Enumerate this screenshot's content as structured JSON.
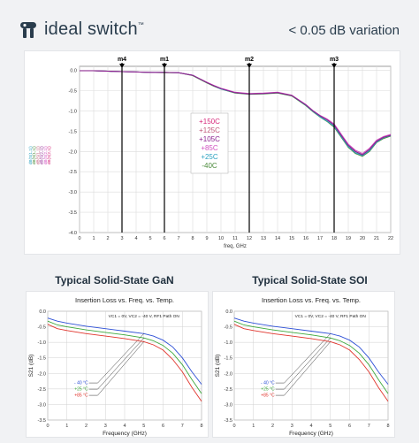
{
  "brand": {
    "name": "ideal switch",
    "mark": "™"
  },
  "tagline": "< 0.05 dB variation",
  "colors": {
    "brand": "#2a3d4d",
    "grid": "#d4d4d4",
    "marker": "#000000"
  },
  "top_chart": {
    "type": "line",
    "xlabel": "freq, GHz",
    "xlim": [
      0,
      22
    ],
    "ylim": [
      -4.0,
      0.1
    ],
    "xticks": [
      0,
      1,
      2,
      3,
      4,
      5,
      6,
      7,
      8,
      9,
      10,
      11,
      12,
      13,
      14,
      15,
      16,
      17,
      18,
      19,
      20,
      21,
      22
    ],
    "yticks": [
      0.0,
      -0.5,
      -1.0,
      -1.5,
      -2.0,
      -2.5,
      -3.0,
      -3.5,
      -4.0
    ],
    "ytick_labels": [
      "0.0",
      "-0.5",
      "-1.0",
      "-1.5",
      "-2.0",
      "-2.5",
      "-3.0",
      "-3.5",
      "-4.0"
    ],
    "markers": [
      {
        "name": "m4",
        "x": 3
      },
      {
        "name": "m1",
        "x": 6
      },
      {
        "name": "m2",
        "x": 12
      },
      {
        "name": "m3",
        "x": 18
      }
    ],
    "legend": [
      {
        "label": "+150C",
        "color": "#d6287a"
      },
      {
        "label": "+125C",
        "color": "#c0587a"
      },
      {
        "label": "+105C",
        "color": "#8b1f8f"
      },
      {
        "label": "+85C",
        "color": "#d04fc0"
      },
      {
        "label": "+25C",
        "color": "#2aa0c0"
      },
      {
        "label": "-40C",
        "color": "#4a8a3a"
      }
    ],
    "x": [
      0,
      1,
      2,
      3,
      4,
      5,
      6,
      7,
      8,
      9,
      9.5,
      10,
      11,
      12,
      13,
      14,
      15,
      16,
      16.5,
      17,
      17.5,
      18,
      18.5,
      19,
      19.5,
      20,
      20.5,
      21,
      21.5,
      22
    ],
    "series": [
      {
        "color": "#555555",
        "values": [
          -0.01,
          -0.01,
          -0.02,
          -0.03,
          -0.04,
          -0.05,
          -0.05,
          -0.06,
          -0.12,
          -0.3,
          -0.38,
          -0.45,
          -0.55,
          -0.58,
          -0.57,
          -0.55,
          -0.62,
          -0.85,
          -1.0,
          -1.12,
          -1.22,
          -1.35,
          -1.6,
          -1.85,
          -2.0,
          -2.08,
          -1.95,
          -1.75,
          -1.65,
          -1.6
        ]
      },
      {
        "color": "#4a8a3a",
        "values": [
          -0.01,
          -0.01,
          -0.02,
          -0.03,
          -0.04,
          -0.05,
          -0.06,
          -0.06,
          -0.13,
          -0.31,
          -0.39,
          -0.46,
          -0.56,
          -0.59,
          -0.58,
          -0.56,
          -0.63,
          -0.87,
          -1.02,
          -1.15,
          -1.26,
          -1.4,
          -1.65,
          -1.9,
          -2.05,
          -2.12,
          -2.0,
          -1.78,
          -1.68,
          -1.62
        ]
      },
      {
        "color": "#2aa0c0",
        "values": [
          -0.01,
          -0.01,
          -0.02,
          -0.03,
          -0.04,
          -0.05,
          -0.05,
          -0.06,
          -0.12,
          -0.3,
          -0.38,
          -0.46,
          -0.55,
          -0.58,
          -0.57,
          -0.55,
          -0.62,
          -0.86,
          -1.01,
          -1.14,
          -1.25,
          -1.38,
          -1.63,
          -1.88,
          -2.03,
          -2.1,
          -1.98,
          -1.77,
          -1.66,
          -1.61
        ]
      },
      {
        "color": "#d04fc0",
        "values": [
          -0.01,
          -0.01,
          -0.02,
          -0.03,
          -0.04,
          -0.05,
          -0.05,
          -0.06,
          -0.12,
          -0.29,
          -0.37,
          -0.44,
          -0.54,
          -0.57,
          -0.56,
          -0.54,
          -0.61,
          -0.84,
          -0.99,
          -1.11,
          -1.2,
          -1.32,
          -1.57,
          -1.82,
          -1.97,
          -2.05,
          -1.92,
          -1.72,
          -1.63,
          -1.58
        ]
      },
      {
        "color": "#8b1f8f",
        "values": [
          -0.01,
          -0.01,
          -0.02,
          -0.03,
          -0.04,
          -0.05,
          -0.05,
          -0.06,
          -0.12,
          -0.3,
          -0.38,
          -0.45,
          -0.55,
          -0.58,
          -0.57,
          -0.55,
          -0.62,
          -0.85,
          -1.0,
          -1.12,
          -1.22,
          -1.35,
          -1.6,
          -1.85,
          -2.0,
          -2.08,
          -1.95,
          -1.75,
          -1.65,
          -1.6
        ]
      }
    ],
    "left_labels": [
      "dB(S(1,1))",
      "dB(S(1,1))",
      "dB(S(1,1))",
      "dB(S(2,1))",
      "dB(S(2,1))",
      "dB(S(2,1))"
    ]
  },
  "panels": [
    {
      "title": "Typical Solid-State GaN",
      "chart_title": "Insertion Loss vs. Freq. vs. Temp.",
      "subtitle": "VC1 = 0V, VC2 = -40 V, RF1 Path ON",
      "xlabel": "Frequency (GHz)",
      "ylabel": "S21 (dB)",
      "xlim": [
        0,
        8
      ],
      "ylim": [
        -3.5,
        0.0
      ],
      "xticks": [
        0,
        1,
        2,
        3,
        4,
        5,
        6,
        7,
        8
      ],
      "yticks": [
        0.0,
        -0.5,
        -1.0,
        -1.5,
        -2.0,
        -2.5,
        -3.0,
        -3.5
      ],
      "ytick_labels": [
        "0.0",
        "-0.5",
        "-1.0",
        "-1.5",
        "-2.0",
        "-2.5",
        "-3.0",
        "-3.5"
      ],
      "x": [
        0,
        0.5,
        1,
        2,
        3,
        4,
        5,
        5.5,
        6,
        6.5,
        7,
        7.5,
        8
      ],
      "series": [
        {
          "name": "- 40 °C",
          "color": "#2c4fd6",
          "values": [
            -0.22,
            -0.32,
            -0.38,
            -0.48,
            -0.56,
            -0.64,
            -0.72,
            -0.8,
            -0.93,
            -1.15,
            -1.5,
            -1.95,
            -2.35
          ]
        },
        {
          "name": "+25 °C",
          "color": "#3ca83c",
          "values": [
            -0.32,
            -0.44,
            -0.5,
            -0.6,
            -0.68,
            -0.76,
            -0.86,
            -0.95,
            -1.1,
            -1.35,
            -1.72,
            -2.2,
            -2.65
          ]
        },
        {
          "name": "+85 °C",
          "color": "#e0342c",
          "values": [
            -0.42,
            -0.56,
            -0.62,
            -0.72,
            -0.8,
            -0.88,
            -0.98,
            -1.08,
            -1.25,
            -1.55,
            -1.95,
            -2.45,
            -2.9
          ]
        }
      ]
    },
    {
      "title": "Typical Solid-State SOI",
      "chart_title": "Insertion Loss vs. Freq. vs. Temp.",
      "subtitle": "VC1 = 0V, VC2 = -40 V, RF1 Path ON",
      "xlabel": "Frequency (GHz)",
      "ylabel": "S21 (dB)",
      "xlim": [
        0,
        8
      ],
      "ylim": [
        -3.5,
        0.0
      ],
      "xticks": [
        0,
        1,
        2,
        3,
        4,
        5,
        6,
        7,
        8
      ],
      "yticks": [
        0.0,
        -0.5,
        -1.0,
        -1.5,
        -2.0,
        -2.5,
        -3.0,
        -3.5
      ],
      "ytick_labels": [
        "0.0",
        "-0.5",
        "-1.0",
        "-1.5",
        "-2.0",
        "-2.5",
        "-3.0",
        "-3.5"
      ],
      "x": [
        0,
        0.5,
        1,
        2,
        3,
        4,
        5,
        5.5,
        6,
        6.5,
        7,
        7.5,
        8
      ],
      "series": [
        {
          "name": "- 40 °C",
          "color": "#2c4fd6",
          "values": [
            -0.22,
            -0.32,
            -0.38,
            -0.48,
            -0.56,
            -0.64,
            -0.72,
            -0.8,
            -0.93,
            -1.15,
            -1.5,
            -1.95,
            -2.35
          ]
        },
        {
          "name": "+25 °C",
          "color": "#3ca83c",
          "values": [
            -0.32,
            -0.44,
            -0.5,
            -0.6,
            -0.68,
            -0.76,
            -0.86,
            -0.95,
            -1.1,
            -1.35,
            -1.72,
            -2.2,
            -2.65
          ]
        },
        {
          "name": "+85 °C",
          "color": "#e0342c",
          "values": [
            -0.42,
            -0.56,
            -0.62,
            -0.72,
            -0.8,
            -0.88,
            -0.98,
            -1.08,
            -1.25,
            -1.55,
            -1.95,
            -2.45,
            -2.9
          ]
        }
      ]
    }
  ],
  "chart_data": [
    {
      "type": "line",
      "xlabel": "freq, GHz",
      "xlim": [
        0,
        22
      ],
      "ylim": [
        -4.0,
        0.0
      ],
      "categories": [
        0,
        1,
        2,
        3,
        4,
        5,
        6,
        7,
        8,
        9,
        10,
        11,
        12,
        13,
        14,
        15,
        16,
        17,
        18,
        19,
        20,
        21,
        22
      ],
      "series": [
        {
          "name": "+150C",
          "values": [
            -0.01,
            -0.01,
            -0.02,
            -0.03,
            -0.04,
            -0.05,
            -0.05,
            -0.06,
            -0.12,
            -0.3,
            -0.45,
            -0.55,
            -0.58,
            -0.57,
            -0.55,
            -0.62,
            -0.85,
            -1.12,
            -1.35,
            -1.85,
            -2.08,
            -1.75,
            -1.6
          ]
        },
        {
          "name": "-40C",
          "values": [
            -0.01,
            -0.01,
            -0.02,
            -0.03,
            -0.04,
            -0.05,
            -0.06,
            -0.06,
            -0.13,
            -0.31,
            -0.46,
            -0.56,
            -0.59,
            -0.58,
            -0.56,
            -0.63,
            -0.87,
            -1.15,
            -1.4,
            -1.9,
            -2.12,
            -1.78,
            -1.62
          ]
        }
      ],
      "markers": [
        {
          "name": "m4",
          "x": 3
        },
        {
          "name": "m1",
          "x": 6
        },
        {
          "name": "m2",
          "x": 12
        },
        {
          "name": "m3",
          "x": 18
        }
      ],
      "legend_position": "center"
    },
    {
      "type": "line",
      "title": "Insertion Loss vs. Freq. vs. Temp.",
      "xlabel": "Frequency (GHz)",
      "ylabel": "S21 (dB)",
      "xlim": [
        0,
        8
      ],
      "ylim": [
        -3.5,
        0.0
      ],
      "x": [
        0,
        0.5,
        1,
        2,
        3,
        4,
        5,
        5.5,
        6,
        6.5,
        7,
        7.5,
        8
      ],
      "series": [
        {
          "name": "- 40 °C",
          "values": [
            -0.22,
            -0.32,
            -0.38,
            -0.48,
            -0.56,
            -0.64,
            -0.72,
            -0.8,
            -0.93,
            -1.15,
            -1.5,
            -1.95,
            -2.35
          ]
        },
        {
          "name": "+25 °C",
          "values": [
            -0.32,
            -0.44,
            -0.5,
            -0.6,
            -0.68,
            -0.76,
            -0.86,
            -0.95,
            -1.1,
            -1.35,
            -1.72,
            -2.2,
            -2.65
          ]
        },
        {
          "name": "+85 °C",
          "values": [
            -0.42,
            -0.56,
            -0.62,
            -0.72,
            -0.8,
            -0.88,
            -0.98,
            -1.08,
            -1.25,
            -1.55,
            -1.95,
            -2.45,
            -2.9
          ]
        }
      ]
    },
    {
      "type": "line",
      "title": "Insertion Loss vs. Freq. vs. Temp.",
      "xlabel": "Frequency (GHz)",
      "ylabel": "S21 (dB)",
      "xlim": [
        0,
        8
      ],
      "ylim": [
        -3.5,
        0.0
      ],
      "x": [
        0,
        0.5,
        1,
        2,
        3,
        4,
        5,
        5.5,
        6,
        6.5,
        7,
        7.5,
        8
      ],
      "series": [
        {
          "name": "- 40 °C",
          "values": [
            -0.22,
            -0.32,
            -0.38,
            -0.48,
            -0.56,
            -0.64,
            -0.72,
            -0.8,
            -0.93,
            -1.15,
            -1.5,
            -1.95,
            -2.35
          ]
        },
        {
          "name": "+25 °C",
          "values": [
            -0.32,
            -0.44,
            -0.5,
            -0.6,
            -0.68,
            -0.76,
            -0.86,
            -0.95,
            -1.1,
            -1.35,
            -1.72,
            -2.2,
            -2.65
          ]
        },
        {
          "name": "+85 °C",
          "values": [
            -0.42,
            -0.56,
            -0.62,
            -0.72,
            -0.8,
            -0.88,
            -0.98,
            -1.08,
            -1.25,
            -1.55,
            -1.95,
            -2.45,
            -2.9
          ]
        }
      ]
    }
  ]
}
